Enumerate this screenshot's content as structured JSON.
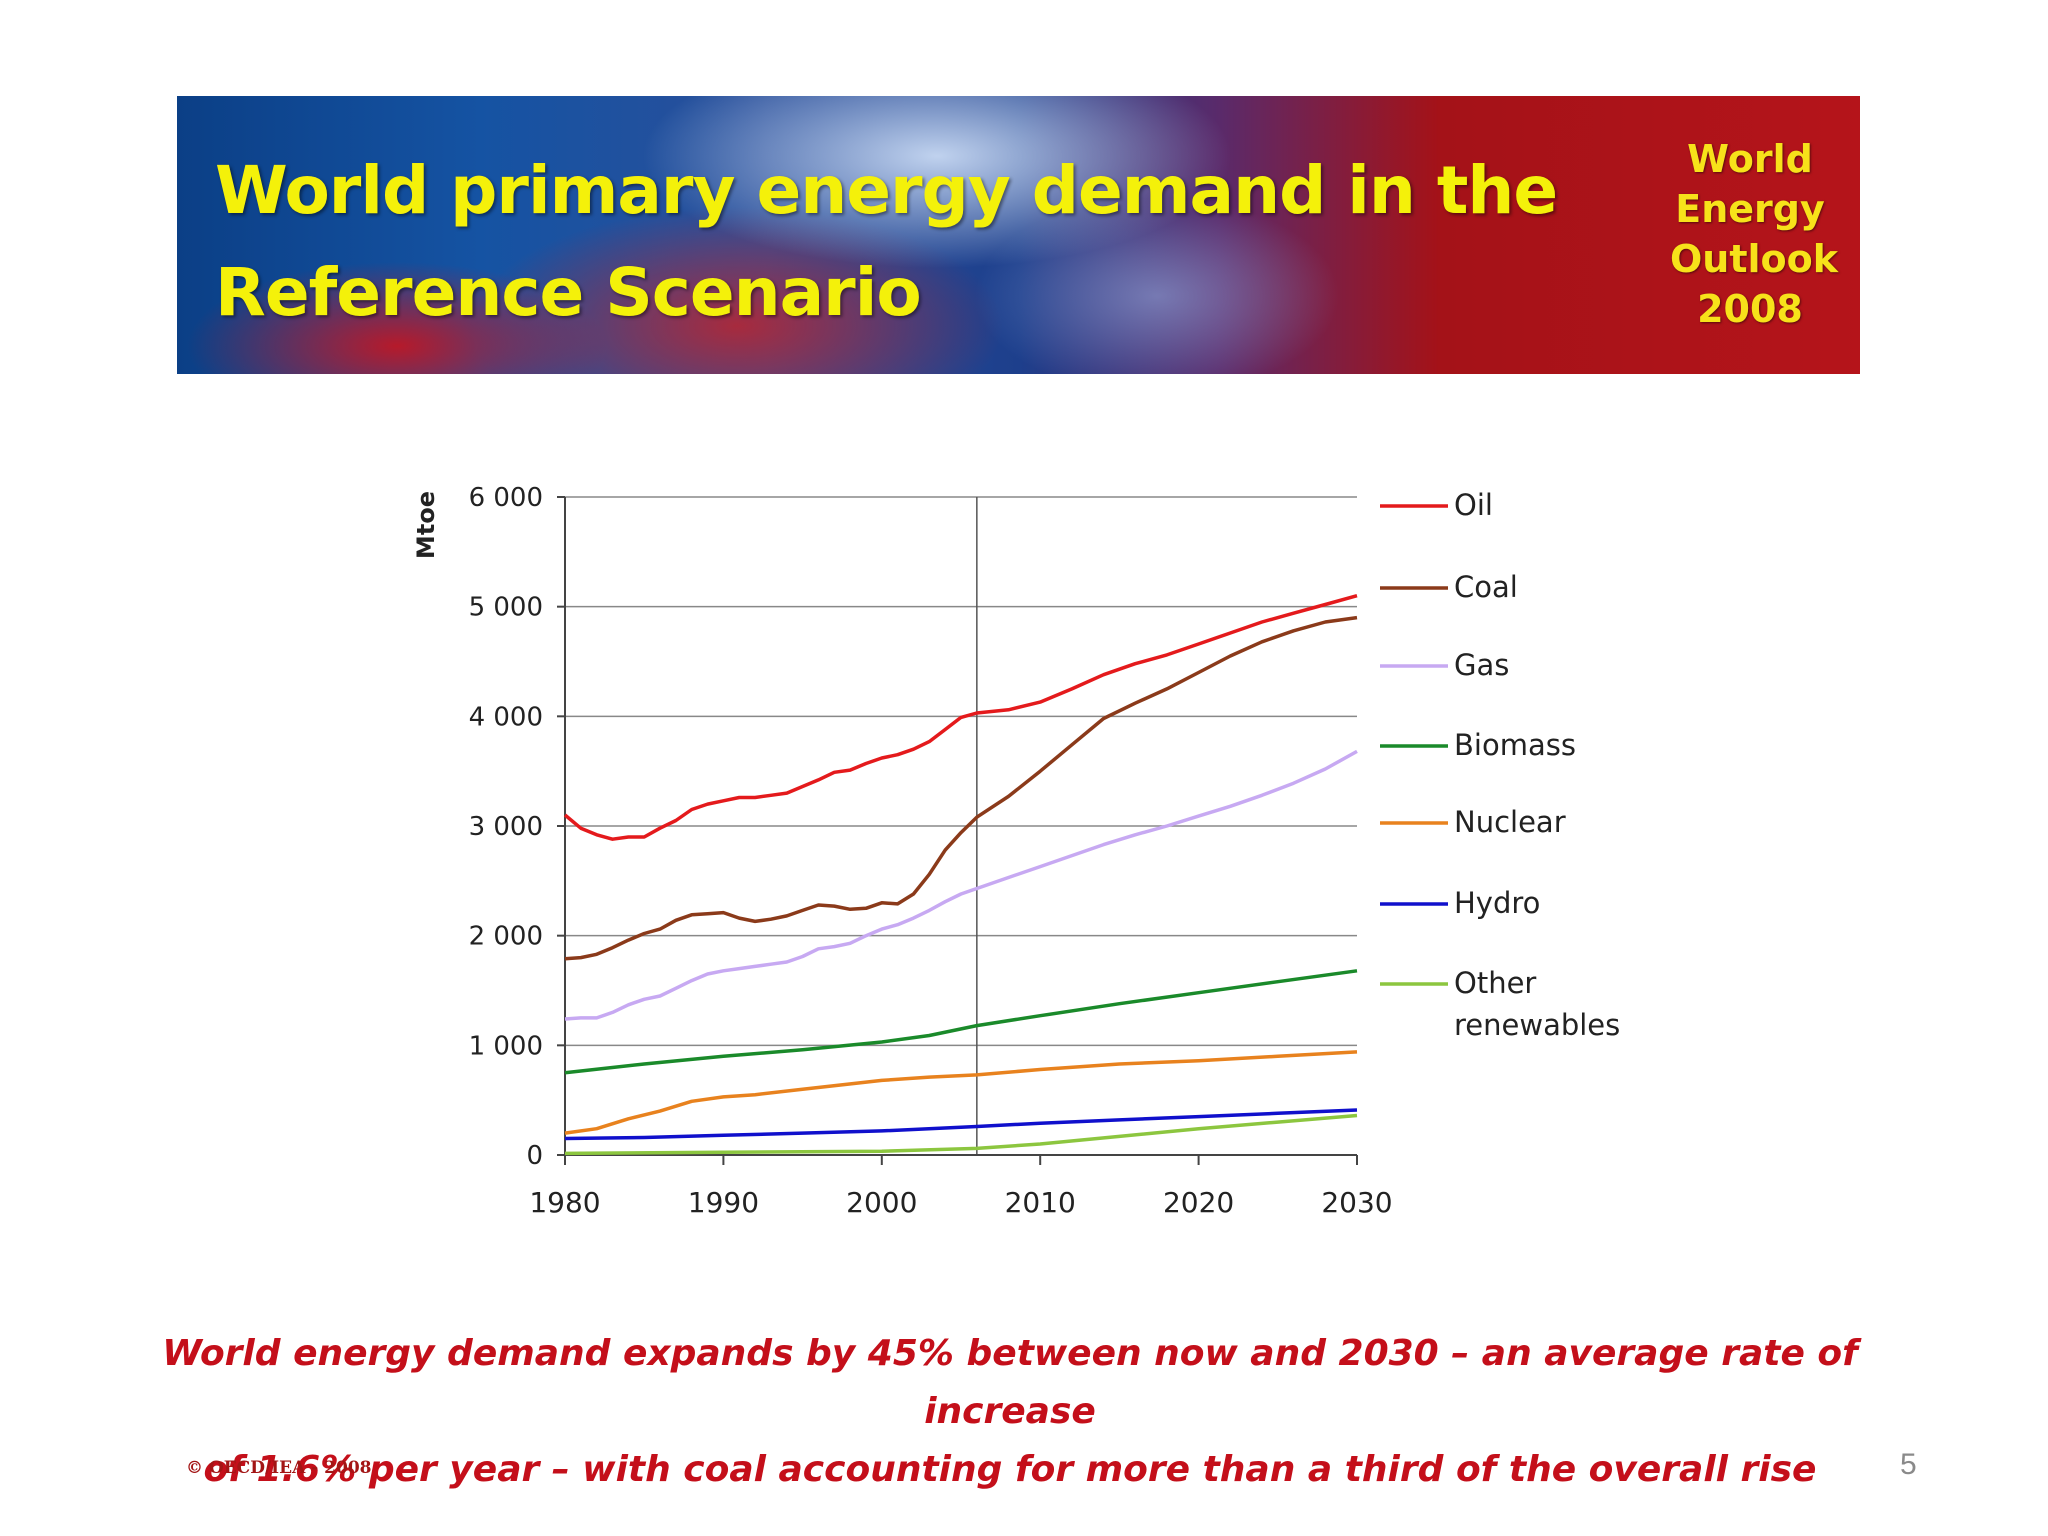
{
  "banner": {
    "title_line1": "World primary energy demand in the",
    "title_line2": "Reference Scenario",
    "logo_line1": "World",
    "logo_line2": "Energy",
    "logo_line3": "Outlook",
    "logo_line4": "2008"
  },
  "chart_data": {
    "type": "line",
    "ylabel": "Mtoe",
    "xlabel": "",
    "xlim": [
      1980,
      2030
    ],
    "ylim": [
      0,
      6000
    ],
    "x_ticks": [
      1980,
      1990,
      2000,
      2010,
      2020,
      2030
    ],
    "x_tick_labels": [
      "1980",
      "1990",
      "2000",
      "2010",
      "2020",
      "2030"
    ],
    "y_ticks": [
      0,
      1000,
      2000,
      3000,
      4000,
      5000,
      6000
    ],
    "y_tick_labels": [
      "0",
      "1 000",
      "2 000",
      "3 000",
      "4 000",
      "5 000",
      "6 000"
    ],
    "grid": "horizontal",
    "reference_line_x": 2006,
    "legend_position": "right",
    "series": [
      {
        "name": "Oil",
        "color": "#e41a1c",
        "points": [
          [
            1980,
            3100
          ],
          [
            1981,
            2980
          ],
          [
            1982,
            2920
          ],
          [
            1983,
            2880
          ],
          [
            1984,
            2900
          ],
          [
            1985,
            2900
          ],
          [
            1986,
            2980
          ],
          [
            1987,
            3050
          ],
          [
            1988,
            3150
          ],
          [
            1989,
            3200
          ],
          [
            1990,
            3230
          ],
          [
            1991,
            3260
          ],
          [
            1992,
            3260
          ],
          [
            1993,
            3280
          ],
          [
            1994,
            3300
          ],
          [
            1995,
            3360
          ],
          [
            1996,
            3420
          ],
          [
            1997,
            3490
          ],
          [
            1998,
            3510
          ],
          [
            1999,
            3570
          ],
          [
            2000,
            3620
          ],
          [
            2001,
            3650
          ],
          [
            2002,
            3700
          ],
          [
            2003,
            3770
          ],
          [
            2004,
            3880
          ],
          [
            2005,
            3990
          ],
          [
            2006,
            4030
          ],
          [
            2008,
            4060
          ],
          [
            2010,
            4130
          ],
          [
            2012,
            4250
          ],
          [
            2014,
            4380
          ],
          [
            2016,
            4480
          ],
          [
            2018,
            4560
          ],
          [
            2020,
            4660
          ],
          [
            2022,
            4760
          ],
          [
            2024,
            4860
          ],
          [
            2026,
            4940
          ],
          [
            2028,
            5020
          ],
          [
            2030,
            5100
          ]
        ]
      },
      {
        "name": "Coal",
        "color": "#8b3a1a",
        "points": [
          [
            1980,
            1790
          ],
          [
            1981,
            1800
          ],
          [
            1982,
            1830
          ],
          [
            1983,
            1890
          ],
          [
            1984,
            1960
          ],
          [
            1985,
            2020
          ],
          [
            1986,
            2060
          ],
          [
            1987,
            2140
          ],
          [
            1988,
            2190
          ],
          [
            1989,
            2200
          ],
          [
            1990,
            2210
          ],
          [
            1991,
            2160
          ],
          [
            1992,
            2130
          ],
          [
            1993,
            2150
          ],
          [
            1994,
            2180
          ],
          [
            1995,
            2230
          ],
          [
            1996,
            2280
          ],
          [
            1997,
            2270
          ],
          [
            1998,
            2240
          ],
          [
            1999,
            2250
          ],
          [
            2000,
            2300
          ],
          [
            2001,
            2290
          ],
          [
            2002,
            2380
          ],
          [
            2003,
            2560
          ],
          [
            2004,
            2780
          ],
          [
            2005,
            2940
          ],
          [
            2006,
            3080
          ],
          [
            2008,
            3270
          ],
          [
            2010,
            3500
          ],
          [
            2012,
            3740
          ],
          [
            2014,
            3980
          ],
          [
            2016,
            4120
          ],
          [
            2018,
            4250
          ],
          [
            2020,
            4400
          ],
          [
            2022,
            4550
          ],
          [
            2024,
            4680
          ],
          [
            2026,
            4780
          ],
          [
            2028,
            4860
          ],
          [
            2030,
            4900
          ]
        ]
      },
      {
        "name": "Gas",
        "color": "#c7a9f2",
        "points": [
          [
            1980,
            1240
          ],
          [
            1981,
            1250
          ],
          [
            1982,
            1250
          ],
          [
            1983,
            1300
          ],
          [
            1984,
            1370
          ],
          [
            1985,
            1420
          ],
          [
            1986,
            1450
          ],
          [
            1987,
            1520
          ],
          [
            1988,
            1590
          ],
          [
            1989,
            1650
          ],
          [
            1990,
            1680
          ],
          [
            1991,
            1700
          ],
          [
            1992,
            1720
          ],
          [
            1993,
            1740
          ],
          [
            1994,
            1760
          ],
          [
            1995,
            1810
          ],
          [
            1996,
            1880
          ],
          [
            1997,
            1900
          ],
          [
            1998,
            1930
          ],
          [
            1999,
            2000
          ],
          [
            2000,
            2060
          ],
          [
            2001,
            2100
          ],
          [
            2002,
            2160
          ],
          [
            2003,
            2230
          ],
          [
            2004,
            2310
          ],
          [
            2005,
            2380
          ],
          [
            2006,
            2430
          ],
          [
            2008,
            2530
          ],
          [
            2010,
            2630
          ],
          [
            2012,
            2730
          ],
          [
            2014,
            2830
          ],
          [
            2016,
            2920
          ],
          [
            2018,
            3000
          ],
          [
            2020,
            3090
          ],
          [
            2022,
            3180
          ],
          [
            2024,
            3280
          ],
          [
            2026,
            3390
          ],
          [
            2028,
            3520
          ],
          [
            2030,
            3680
          ]
        ]
      },
      {
        "name": "Biomass",
        "color": "#1a8a2a",
        "points": [
          [
            1980,
            750
          ],
          [
            1985,
            830
          ],
          [
            1990,
            900
          ],
          [
            1995,
            960
          ],
          [
            2000,
            1030
          ],
          [
            2003,
            1090
          ],
          [
            2006,
            1180
          ],
          [
            2010,
            1270
          ],
          [
            2015,
            1380
          ],
          [
            2020,
            1480
          ],
          [
            2025,
            1580
          ],
          [
            2030,
            1680
          ]
        ]
      },
      {
        "name": "Nuclear",
        "color": "#e8821e",
        "points": [
          [
            1980,
            200
          ],
          [
            1982,
            240
          ],
          [
            1984,
            330
          ],
          [
            1986,
            400
          ],
          [
            1988,
            490
          ],
          [
            1990,
            530
          ],
          [
            1992,
            550
          ],
          [
            1995,
            600
          ],
          [
            2000,
            680
          ],
          [
            2003,
            710
          ],
          [
            2006,
            730
          ],
          [
            2010,
            780
          ],
          [
            2015,
            830
          ],
          [
            2020,
            860
          ],
          [
            2025,
            900
          ],
          [
            2030,
            940
          ]
        ]
      },
      {
        "name": "Hydro",
        "color": "#1010cc",
        "points": [
          [
            1980,
            150
          ],
          [
            1985,
            160
          ],
          [
            1990,
            180
          ],
          [
            1995,
            200
          ],
          [
            2000,
            220
          ],
          [
            2006,
            260
          ],
          [
            2010,
            290
          ],
          [
            2015,
            320
          ],
          [
            2020,
            350
          ],
          [
            2025,
            380
          ],
          [
            2030,
            410
          ]
        ]
      },
      {
        "name": "Other renewables",
        "color": "#8cc63f",
        "points": [
          [
            1980,
            15
          ],
          [
            1990,
            25
          ],
          [
            2000,
            35
          ],
          [
            2006,
            60
          ],
          [
            2010,
            100
          ],
          [
            2015,
            170
          ],
          [
            2020,
            240
          ],
          [
            2025,
            300
          ],
          [
            2030,
            360
          ]
        ]
      }
    ],
    "legend_labels": [
      "Oil",
      "Coal",
      "Gas",
      "Biomass",
      "Nuclear",
      "Hydro",
      "Other",
      "renewables"
    ]
  },
  "caption": {
    "line1": "World energy demand expands by 45% between now and 2030 – an average rate of increase",
    "line2": "of 1.6% per year – with coal accounting for more than a third of the overall rise"
  },
  "footer": {
    "copyright": "© OECD/IEA - 2008",
    "page_number": "5"
  }
}
